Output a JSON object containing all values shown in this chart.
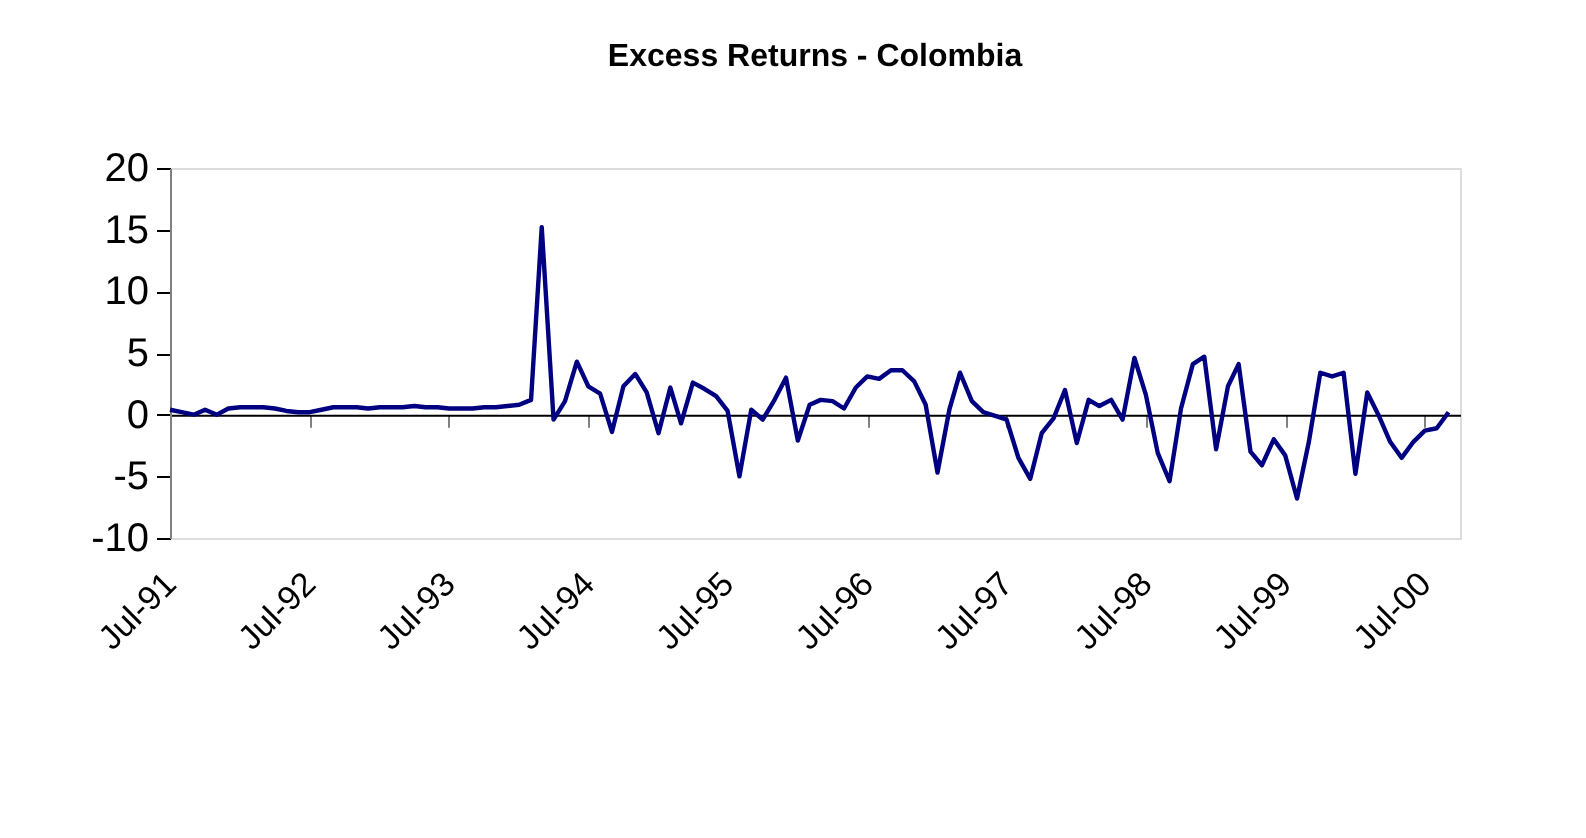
{
  "chart_data": {
    "type": "line",
    "title": "Excess Returns - Colombia",
    "x": [
      "1991-07",
      "1991-08",
      "1991-09",
      "1991-10",
      "1991-11",
      "1991-12",
      "1992-01",
      "1992-02",
      "1992-03",
      "1992-04",
      "1992-05",
      "1992-06",
      "1992-07",
      "1992-08",
      "1992-09",
      "1992-10",
      "1992-11",
      "1992-12",
      "1993-01",
      "1993-02",
      "1993-03",
      "1993-04",
      "1993-05",
      "1993-06",
      "1993-07",
      "1993-08",
      "1993-09",
      "1993-10",
      "1993-11",
      "1993-12",
      "1994-01",
      "1994-02",
      "1994-03",
      "1994-04",
      "1994-05",
      "1994-06",
      "1994-07",
      "1994-08",
      "1994-09",
      "1994-10",
      "1994-11",
      "1994-12",
      "1995-01",
      "1995-02",
      "1995-03",
      "1995-04",
      "1995-05",
      "1995-06",
      "1995-07",
      "1995-08",
      "1995-09",
      "1995-10",
      "1995-11",
      "1995-12",
      "1996-01",
      "1996-02",
      "1996-03",
      "1996-04",
      "1996-05",
      "1996-06",
      "1996-07",
      "1996-08",
      "1996-09",
      "1996-10",
      "1996-11",
      "1996-12",
      "1997-01",
      "1997-02",
      "1997-03",
      "1997-04",
      "1997-05",
      "1997-06",
      "1997-07",
      "1997-08",
      "1997-09",
      "1997-10",
      "1997-11",
      "1997-12",
      "1998-01",
      "1998-02",
      "1998-03",
      "1998-04",
      "1998-05",
      "1998-06",
      "1998-07",
      "1998-08",
      "1998-09",
      "1998-10",
      "1998-11",
      "1998-12",
      "1999-01",
      "1999-02",
      "1999-03",
      "1999-04",
      "1999-05",
      "1999-06",
      "1999-07",
      "1999-08",
      "1999-09",
      "1999-10",
      "1999-11",
      "1999-12",
      "2000-01",
      "2000-02",
      "2000-03",
      "2000-04",
      "2000-05",
      "2000-06",
      "2000-07",
      "2000-08",
      "2000-09"
    ],
    "series": [
      {
        "color": "#000080",
        "values": [
          0.4,
          0.2,
          0,
          0.4,
          0,
          0.5,
          0.6,
          0.6,
          0.6,
          0.5,
          0.3,
          0.2,
          0.2,
          0.4,
          0.6,
          0.6,
          0.6,
          0.5,
          0.6,
          0.6,
          0.6,
          0.7,
          0.6,
          0.6,
          0.5,
          0.5,
          0.5,
          0.6,
          0.6,
          0.7,
          0.8,
          1.2,
          15.2,
          -0.4,
          1.1,
          4.3,
          2.3,
          1.7,
          -1.4,
          2.3,
          3.3,
          1.8,
          -1.5,
          2.2,
          -0.7,
          2.6,
          2.1,
          1.5,
          0.3,
          -5.0,
          0.4,
          -0.4,
          1.2,
          3.0,
          -2.1,
          0.8,
          1.2,
          1.1,
          0.5,
          2.2,
          3.1,
          2.9,
          3.6,
          3.6,
          2.7,
          0.8,
          -4.7,
          0.4,
          3.4,
          1.1,
          0.2,
          -0.1,
          -0.4,
          -3.5,
          -5.2,
          -1.5,
          -0.3,
          2.0,
          -2.3,
          1.2,
          0.7,
          1.2,
          -0.4,
          4.6,
          1.6,
          -3.1,
          -5.4,
          0.5,
          4.1,
          4.7,
          -2.8,
          2.3,
          4.1,
          -3.0,
          -4.1,
          -2.0,
          -3.3,
          -6.8,
          -2.2,
          3.4,
          3.1,
          3.4,
          -4.8,
          1.8,
          0,
          -2.2,
          -3.5,
          -2.2,
          -1.3,
          -1.1,
          0.2
        ]
      }
    ],
    "xlim": [
      "1991-07",
      "2000-10"
    ],
    "xticks": [
      {
        "value": "1991-07",
        "label": "Jul-91"
      },
      {
        "value": "1992-07",
        "label": "Jul-92"
      },
      {
        "value": "1993-07",
        "label": "Jul-93"
      },
      {
        "value": "1994-07",
        "label": "Jul-94"
      },
      {
        "value": "1995-07",
        "label": "Jul-95"
      },
      {
        "value": "1996-07",
        "label": "Jul-96"
      },
      {
        "value": "1997-07",
        "label": "Jul-97"
      },
      {
        "value": "1998-07",
        "label": "Jul-98"
      },
      {
        "value": "1999-07",
        "label": "Jul-99"
      },
      {
        "value": "2000-07",
        "label": "Jul-00"
      }
    ],
    "ylim": [
      -10,
      20
    ],
    "yticks": [
      -10,
      -5,
      0,
      5,
      10,
      15,
      20
    ],
    "marker": "none",
    "line_style": "solid"
  }
}
